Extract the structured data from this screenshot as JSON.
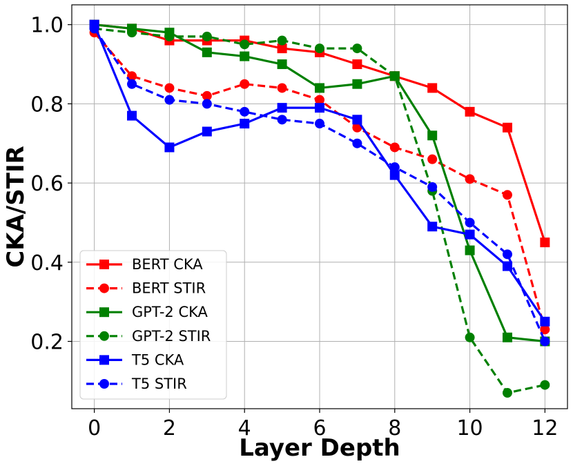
{
  "chart_data": {
    "type": "line",
    "xlabel": "Layer Depth",
    "ylabel": "CKA/STIR",
    "x": [
      0,
      1,
      2,
      3,
      4,
      5,
      6,
      7,
      8,
      9,
      10,
      11,
      12
    ],
    "xlim": [
      -0.6,
      12.6
    ],
    "ylim": [
      0.03,
      1.05
    ],
    "xticks": [
      0,
      2,
      4,
      6,
      8,
      10,
      12
    ],
    "xtick_labels": [
      "0",
      "2",
      "4",
      "6",
      "8",
      "10",
      "12"
    ],
    "yticks": [
      0.2,
      0.4,
      0.6,
      0.8,
      1.0
    ],
    "ytick_labels": [
      "0.2",
      "0.4",
      "0.6",
      "0.8",
      "1.0"
    ],
    "grid": true,
    "legend_position": "lower-left",
    "series": [
      {
        "name": "BERT CKA",
        "color": "#ff0000",
        "line_style": "solid",
        "marker": "square",
        "values": [
          1.0,
          0.99,
          0.96,
          0.96,
          0.96,
          0.94,
          0.93,
          0.9,
          0.87,
          0.84,
          0.78,
          0.74,
          0.45
        ]
      },
      {
        "name": "BERT STIR",
        "color": "#ff0000",
        "line_style": "dashed",
        "marker": "circle",
        "values": [
          0.98,
          0.87,
          0.84,
          0.82,
          0.85,
          0.84,
          0.81,
          0.74,
          0.69,
          0.66,
          0.61,
          0.57,
          0.23
        ]
      },
      {
        "name": "GPT-2 CKA",
        "color": "#008000",
        "line_style": "solid",
        "marker": "square",
        "values": [
          1.0,
          0.99,
          0.98,
          0.93,
          0.92,
          0.9,
          0.84,
          0.85,
          0.87,
          0.72,
          0.43,
          0.21,
          0.2
        ]
      },
      {
        "name": "GPT-2 STIR",
        "color": "#008000",
        "line_style": "dashed",
        "marker": "circle",
        "values": [
          0.99,
          0.98,
          0.97,
          0.97,
          0.95,
          0.96,
          0.94,
          0.94,
          0.87,
          0.58,
          0.21,
          0.07,
          0.09
        ]
      },
      {
        "name": "T5 CKA",
        "color": "#0000ff",
        "line_style": "solid",
        "marker": "square",
        "values": [
          1.0,
          0.77,
          0.69,
          0.73,
          0.75,
          0.79,
          0.79,
          0.76,
          0.62,
          0.49,
          0.47,
          0.39,
          0.25
        ]
      },
      {
        "name": "T5 STIR",
        "color": "#0000ff",
        "line_style": "dashed",
        "marker": "circle",
        "values": [
          0.99,
          0.85,
          0.81,
          0.8,
          0.78,
          0.76,
          0.75,
          0.7,
          0.64,
          0.59,
          0.5,
          0.42,
          0.2
        ]
      }
    ]
  }
}
